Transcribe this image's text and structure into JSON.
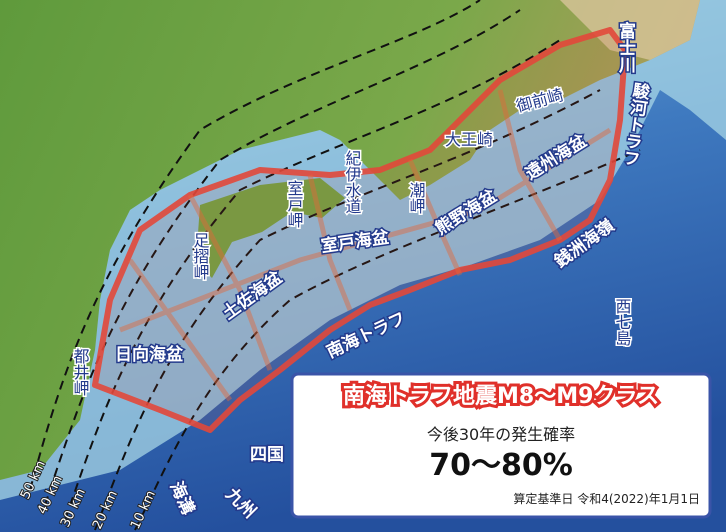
{
  "labels": [
    "富士川",
    "駿河トラフ",
    "御前崎",
    "大王崎",
    "遠州海盆",
    "紀伊水道",
    "潮岬",
    "熊野海盆",
    "室戸岬",
    "室戸海盆",
    "足摺岬",
    "土佐海盆",
    "銭洲海嶺",
    "日向海盆",
    "南海トラフ",
    "都井岬",
    "西七島",
    "四国",
    "九州",
    "海溝"
  ],
  "depth_labels": [
    "50 km",
    "40 km",
    "30 km",
    "20 km",
    "10 km"
  ],
  "info_box": {
    "title": "南海トラフ地震M8～M9クラス",
    "subtitle": "今後30年の発生確率",
    "probability": "70～80%",
    "reference_date": "算定基準日 令和4(2022)年1月1日"
  }
}
